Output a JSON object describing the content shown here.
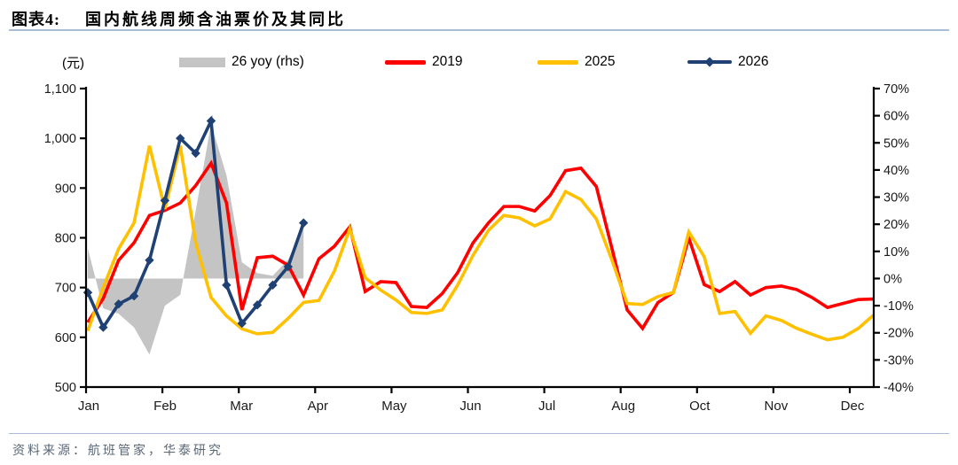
{
  "header": {
    "tag": "图表4:",
    "title": "国内航线周频含油票价及其同比"
  },
  "unit_label": "(元)",
  "legend": {
    "items": [
      {
        "label": "26 yoy (rhs)",
        "type": "area",
        "color": "#c4c4c4"
      },
      {
        "label": "2019",
        "type": "line",
        "color": "#fe0000"
      },
      {
        "label": "2025",
        "type": "line",
        "color": "#ffc000"
      },
      {
        "label": "2026",
        "type": "diamond",
        "color": "#1f4173"
      }
    ]
  },
  "footer": {
    "source": "资料来源：航班管家，华泰研究"
  },
  "chart_data": {
    "type": "line",
    "title": "国内航线周频含油票价及其同比",
    "x_frequency": "weekly",
    "x_tick_labels": [
      "Jan",
      "Feb",
      "Mar",
      "Apr",
      "May",
      "Jun",
      "Jul",
      "Aug",
      "Oct",
      "Nov",
      "Dec"
    ],
    "y_left": {
      "min": 500,
      "max": 1100,
      "label": "(元)",
      "tick_labels": [
        "1,100",
        "1,000",
        "900",
        "800",
        "700",
        "600",
        "500"
      ]
    },
    "y_right": {
      "min": -40,
      "max": 70,
      "unit": "%",
      "tick_labels": [
        "70%",
        "60%",
        "50%",
        "40%",
        "30%",
        "20%",
        "10%",
        "0%",
        "-10%",
        "-20%",
        "-30%",
        "-40%"
      ]
    },
    "grid": false,
    "legend_position": "top",
    "series": [
      {
        "name": "26 yoy (rhs)",
        "type": "area",
        "axis": "right",
        "color": "#c4c4c4",
        "values": [
          11,
          -11,
          -13,
          -18,
          -28,
          -10,
          -6,
          25,
          57,
          38,
          6,
          2,
          1,
          7,
          19
        ]
      },
      {
        "name": "2019",
        "type": "line",
        "axis": "left",
        "color": "#fe0000",
        "values": [
          630,
          678,
          755,
          790,
          845,
          855,
          870,
          905,
          950,
          870,
          655,
          760,
          763,
          745,
          685,
          758,
          783,
          822,
          692,
          712,
          710,
          662,
          660,
          688,
          730,
          790,
          830,
          863,
          863,
          854,
          885,
          935,
          940,
          903,
          780,
          655,
          618,
          670,
          690,
          800,
          706,
          692,
          712,
          685,
          700,
          703,
          696,
          680,
          660,
          668,
          676,
          677
        ]
      },
      {
        "name": "2025",
        "type": "line",
        "axis": "left",
        "color": "#ffc000",
        "values": [
          613,
          700,
          778,
          830,
          985,
          858,
          985,
          790,
          680,
          643,
          617,
          607,
          610,
          638,
          670,
          674,
          733,
          818,
          720,
          695,
          675,
          650,
          648,
          655,
          705,
          765,
          815,
          845,
          840,
          824,
          838,
          893,
          877,
          838,
          756,
          668,
          666,
          682,
          690,
          812,
          762,
          648,
          652,
          608,
          643,
          634,
          618,
          606,
          595,
          600,
          618,
          645
        ]
      },
      {
        "name": "2026",
        "type": "line",
        "axis": "left",
        "color": "#1f4173",
        "marker": "diamond",
        "values": [
          690,
          620,
          667,
          683,
          755,
          875,
          1000,
          970,
          1035,
          705,
          628,
          665,
          705,
          742,
          830
        ]
      }
    ]
  }
}
